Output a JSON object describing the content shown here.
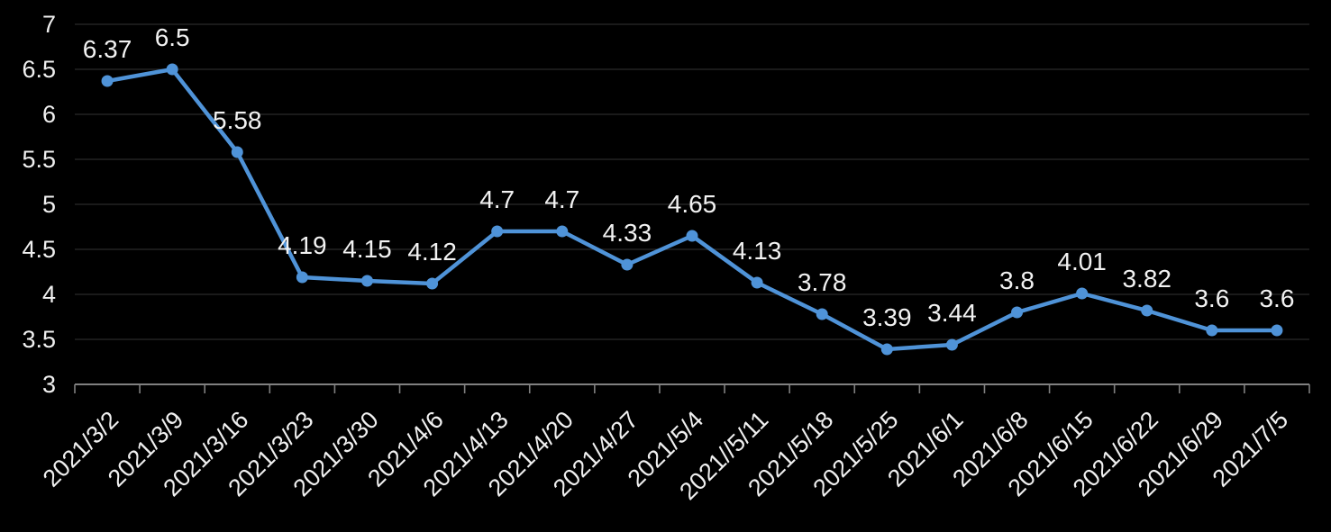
{
  "chart_data": {
    "type": "line",
    "title": "",
    "xlabel": "",
    "ylabel": "",
    "categories": [
      "2021/3/2",
      "2021/3/9",
      "2021/3/16",
      "2021/3/23",
      "2021/3/30",
      "2021/4/6",
      "2021/4/13",
      "2021/4/20",
      "2021/4/27",
      "2021/5/4",
      "2021//5/11",
      "2021/5/18",
      "2021/5/25",
      "2021/6/1",
      "2021/6/8",
      "2021/6/15",
      "2021/6/22",
      "2021/6/29",
      "2021/7/5"
    ],
    "values": [
      6.37,
      6.5,
      5.58,
      4.19,
      4.15,
      4.12,
      4.7,
      4.7,
      4.33,
      4.65,
      4.13,
      3.78,
      3.39,
      3.44,
      3.8,
      4.01,
      3.82,
      3.6,
      3.6
    ],
    "point_labels": [
      "6.37",
      "6.5",
      "5.58",
      "4.19",
      "4.15",
      "4.12",
      "4.7",
      "4.7",
      "4.33",
      "4.65",
      "4.13",
      "3.78",
      "3.39",
      "3.44",
      "3.8",
      "4.01",
      "3.82",
      "3.6",
      "3.6"
    ],
    "ylim": [
      3,
      7
    ],
    "ytick_step": 0.5,
    "ytick_labels": [
      "3",
      "3.5",
      "4",
      "4.5",
      "5",
      "5.5",
      "6",
      "6.5",
      "7"
    ],
    "grid": true,
    "legend": "none",
    "x_label_rotation_deg": -45,
    "colors": {
      "background": "#000000",
      "line": "#4F93D8",
      "marker": "#4F93D8",
      "gridline": "#2B2B2B",
      "axis": "#808080",
      "data_label_text": "#F2F2F2",
      "tick_text": "#F0F0F0"
    }
  }
}
